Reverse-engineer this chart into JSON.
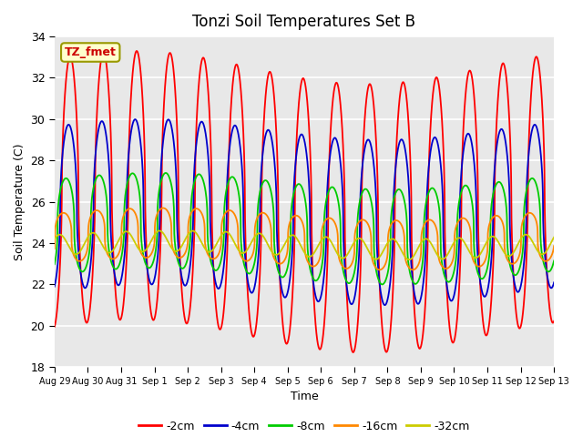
{
  "title": "Tonzi Soil Temperatures Set B",
  "xlabel": "Time",
  "ylabel": "Soil Temperature (C)",
  "ylim": [
    18,
    34
  ],
  "annotation_text": "TZ_fmet",
  "annotation_color": "#cc0000",
  "annotation_bg": "#ffffcc",
  "annotation_border": "#999900",
  "bg_color": "#e8e8e8",
  "series_colors": [
    "#ff0000",
    "#0000cc",
    "#00cc00",
    "#ff8800",
    "#cccc00"
  ],
  "series_labels": [
    "-2cm",
    "-4cm",
    "-8cm",
    "-16cm",
    "-32cm"
  ],
  "xtick_labels": [
    "Aug 29",
    "Aug 30",
    "Aug 31",
    "Sep 1",
    "Sep 2",
    "Sep 3",
    "Sep 4",
    "Sep 5",
    "Sep 6",
    "Sep 7",
    "Sep 8",
    "Sep 9",
    "Sep 10",
    "Sep 11",
    "Sep 12",
    "Sep 13"
  ],
  "n_days": 15,
  "points_per_day": 240
}
